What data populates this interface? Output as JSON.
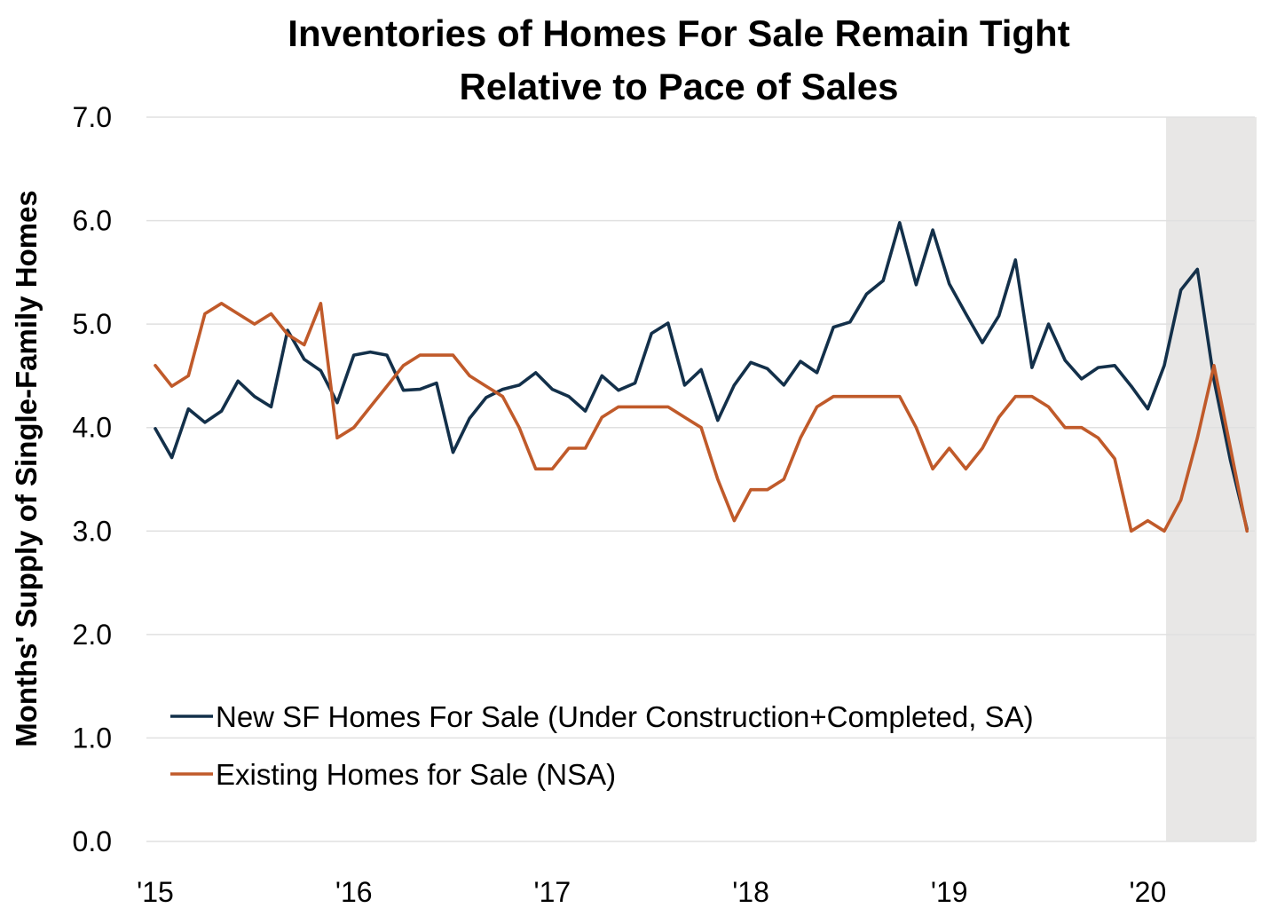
{
  "chart_data": {
    "type": "line",
    "title_lines": [
      "Inventories of Homes For Sale Remain Tight",
      "Relative to Pace of Sales"
    ],
    "xlabel": "",
    "ylabel": "Months' Supply of Single-Family Homes",
    "ylim": [
      0,
      7
    ],
    "yticks": [
      "0.0",
      "1.0",
      "2.0",
      "3.0",
      "4.0",
      "5.0",
      "6.0",
      "7.0"
    ],
    "xtick_labels": [
      "'15",
      "'16",
      "'17",
      "'18",
      "'19",
      "'20"
    ],
    "x_start": "2015-01",
    "x_end": "2020-07",
    "shaded_range": [
      "2020-02",
      "2020-07"
    ],
    "grid": true,
    "legend_position": "bottom-left",
    "series": [
      {
        "name": "New SF Homes For Sale (Under Construction+Completed, SA)",
        "color": "#13304a",
        "values": [
          3.99,
          3.71,
          4.18,
          4.05,
          4.16,
          4.45,
          4.3,
          4.2,
          4.94,
          4.66,
          4.55,
          4.24,
          4.7,
          4.73,
          4.7,
          4.36,
          4.37,
          4.43,
          3.76,
          4.09,
          4.29,
          4.37,
          4.41,
          4.53,
          4.37,
          4.3,
          4.16,
          4.5,
          4.36,
          4.43,
          4.91,
          5.01,
          4.41,
          4.56,
          4.07,
          4.41,
          4.63,
          4.57,
          4.41,
          4.64,
          4.53,
          4.97,
          5.02,
          5.29,
          5.42,
          5.98,
          5.38,
          5.91,
          5.39,
          5.1,
          4.82,
          5.08,
          5.62,
          4.58,
          5.0,
          4.65,
          4.47,
          4.58,
          4.6,
          4.4,
          4.18,
          4.6,
          5.33,
          5.53,
          4.46,
          3.68,
          3.02
        ]
      },
      {
        "name": "Existing Homes for Sale (NSA)",
        "color": "#c05a2a",
        "values": [
          4.6,
          4.4,
          4.5,
          5.1,
          5.2,
          5.1,
          5.0,
          5.1,
          4.9,
          4.8,
          5.2,
          3.9,
          4.0,
          4.2,
          4.4,
          4.6,
          4.7,
          4.7,
          4.7,
          4.5,
          4.4,
          4.3,
          4.0,
          3.6,
          3.6,
          3.8,
          3.8,
          4.1,
          4.2,
          4.2,
          4.2,
          4.2,
          4.1,
          4.0,
          3.5,
          3.1,
          3.4,
          3.4,
          3.5,
          3.9,
          4.2,
          4.3,
          4.3,
          4.3,
          4.3,
          4.3,
          4.0,
          3.6,
          3.8,
          3.6,
          3.8,
          4.1,
          4.3,
          4.3,
          4.2,
          4.0,
          4.0,
          3.9,
          3.7,
          3.0,
          3.1,
          3.0,
          3.3,
          3.9,
          4.6,
          3.8,
          3.0
        ]
      }
    ]
  }
}
